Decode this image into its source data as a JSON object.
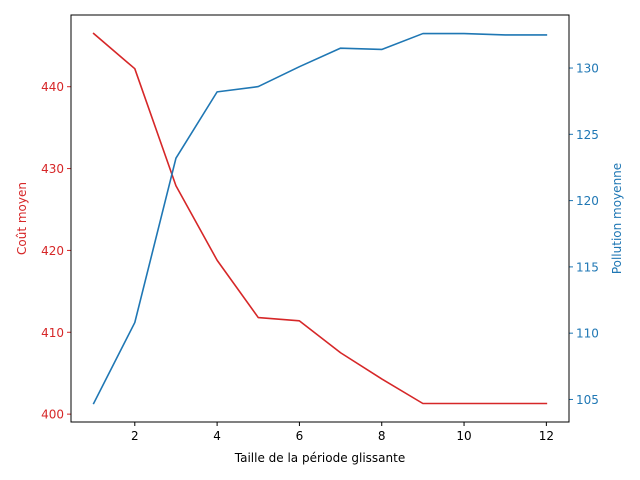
{
  "chart_data": {
    "type": "line",
    "title": "",
    "xlabel": "Taille de la période glissante",
    "x": [
      1,
      2,
      3,
      4,
      5,
      6,
      7,
      8,
      9,
      10,
      11,
      12
    ],
    "xlim": [
      0.45,
      12.55
    ],
    "xticks": [
      2,
      4,
      6,
      8,
      10,
      12
    ],
    "xtick_labels": [
      "2",
      "4",
      "6",
      "8",
      "10",
      "12"
    ],
    "grid": false,
    "series": [
      {
        "name": "Coût moyen",
        "axis": "left",
        "color": "#d62728",
        "values": [
          446.5,
          442.2,
          427.9,
          418.8,
          411.8,
          411.4,
          407.5,
          404.3,
          401.3,
          401.3,
          401.3,
          401.3
        ]
      },
      {
        "name": "Pollution moyenne",
        "axis": "right",
        "color": "#1f77b4",
        "values": [
          104.7,
          110.8,
          123.2,
          128.2,
          128.6,
          130.1,
          131.5,
          131.4,
          132.6,
          132.6,
          132.5,
          132.5
        ]
      }
    ],
    "left_axis": {
      "label": "Coût moyen",
      "color": "#d62728",
      "ylim": [
        399.04,
        448.76
      ],
      "ticks": [
        400,
        410,
        420,
        430,
        440
      ],
      "tick_labels": [
        "400",
        "410",
        "420",
        "430",
        "440"
      ]
    },
    "right_axis": {
      "label": "Pollution moyenne",
      "color": "#1f77b4",
      "ylim": [
        103.3,
        134.0
      ],
      "ticks": [
        105,
        110,
        115,
        120,
        125,
        130
      ],
      "tick_labels": [
        "105",
        "110",
        "115",
        "120",
        "125",
        "130"
      ]
    }
  }
}
